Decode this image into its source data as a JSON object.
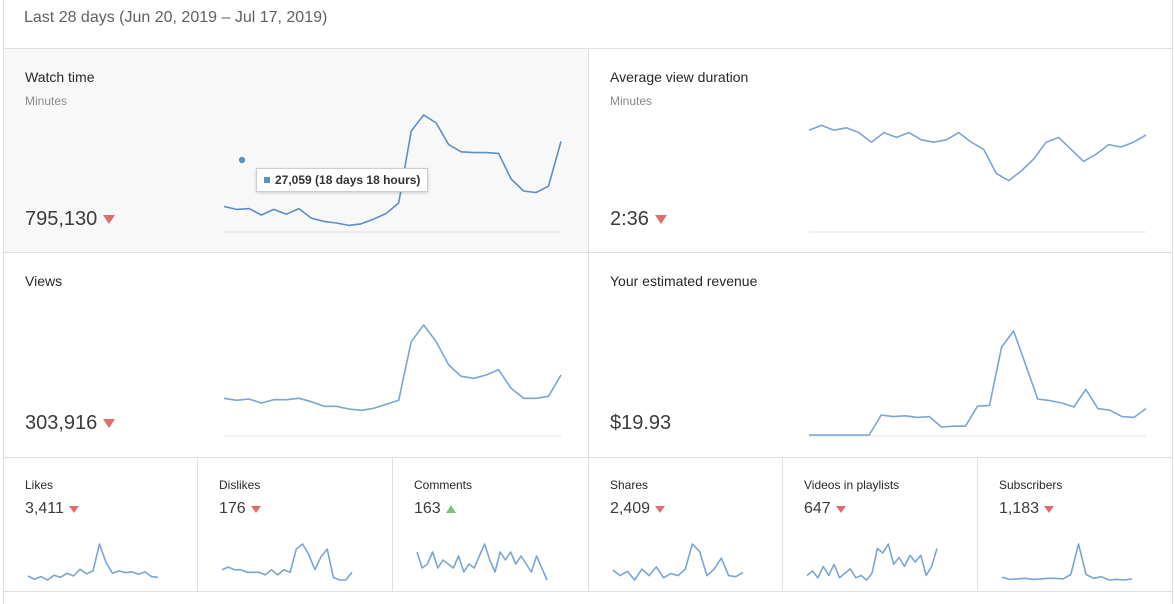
{
  "period_label": "Last 28 days (Jun 20, 2019 – Jul 17, 2019)",
  "colors": {
    "line": "#7aa5d6",
    "line_selected": "#5c8ec8",
    "down": "#e06c6c",
    "up": "#7ac37a"
  },
  "tooltip": {
    "text": "27,059 (18 days 18 hours)"
  },
  "big_cards": [
    {
      "title": "Watch time",
      "unit": "Minutes",
      "value": "795,130",
      "trend": "down",
      "series": [
        27059,
        26700,
        26800,
        26000,
        26700,
        26100,
        26800,
        25600,
        25200,
        25000,
        24700,
        24900,
        25500,
        26200,
        27500,
        36500,
        38500,
        37500,
        34800,
        33900,
        33800,
        33800,
        33700,
        30500,
        29000,
        28800,
        29600,
        35200
      ]
    },
    {
      "title": "Average view duration",
      "unit": "Minutes",
      "value": "2:36",
      "trend": "down",
      "series": [
        2.62,
        2.64,
        2.62,
        2.63,
        2.61,
        2.57,
        2.61,
        2.59,
        2.61,
        2.58,
        2.57,
        2.58,
        2.61,
        2.57,
        2.54,
        2.44,
        2.41,
        2.45,
        2.5,
        2.57,
        2.59,
        2.54,
        2.49,
        2.52,
        2.56,
        2.55,
        2.57,
        2.6
      ]
    },
    {
      "title": "Views",
      "unit": "",
      "value": "303,916",
      "trend": "down",
      "series": [
        10500,
        10200,
        10400,
        9800,
        10300,
        10300,
        10500,
        10000,
        9300,
        9300,
        8900,
        8700,
        9000,
        9600,
        10200,
        19000,
        21500,
        19000,
        15500,
        13800,
        13500,
        14000,
        14800,
        12000,
        10500,
        10500,
        10800,
        14000
      ]
    },
    {
      "title": "Your estimated revenue",
      "unit": "",
      "value": "$19.93",
      "trend": "down",
      "series": [
        0.0,
        0.0,
        0.0,
        0.0,
        0.0,
        0.0,
        0.25,
        0.23,
        0.24,
        0.22,
        0.23,
        0.1,
        0.11,
        0.11,
        0.36,
        0.37,
        1.1,
        1.3,
        0.88,
        0.45,
        0.43,
        0.4,
        0.35,
        0.57,
        0.33,
        0.31,
        0.23,
        0.22,
        0.33
      ]
    }
  ],
  "small_cards": [
    {
      "title": "Likes",
      "value": "3,411",
      "trend": "down",
      "series": [
        110,
        100,
        108,
        98,
        112,
        106,
        118,
        110,
        130,
        116,
        125,
        205,
        150,
        118,
        125,
        120,
        122,
        115,
        122,
        108,
        106
      ]
    },
    {
      "title": "Dislikes",
      "value": "176",
      "trend": "down",
      "series": [
        6,
        7,
        6,
        6,
        5,
        5,
        5,
        4,
        6,
        4,
        6,
        5,
        14,
        16,
        12,
        6,
        11,
        14,
        3,
        2,
        2,
        5
      ]
    },
    {
      "title": "Comments",
      "value": "163",
      "trend": "up",
      "series": [
        7,
        3,
        4,
        7,
        3,
        5,
        4,
        3,
        6,
        2,
        4,
        3,
        6,
        9,
        5,
        2,
        7,
        5,
        7,
        4,
        6,
        4,
        2,
        6,
        3,
        0
      ]
    },
    {
      "title": "Shares",
      "value": "2,409",
      "trend": "down",
      "series": [
        80,
        70,
        78,
        62,
        82,
        70,
        86,
        66,
        74,
        70,
        82,
        128,
        114,
        70,
        82,
        102,
        70,
        68,
        76
      ]
    },
    {
      "title": "Videos in playlists",
      "value": "647",
      "trend": "down",
      "series": [
        20,
        24,
        18,
        28,
        20,
        30,
        18,
        22,
        26,
        18,
        20,
        16,
        22,
        44,
        40,
        48,
        30,
        36,
        28,
        38,
        32,
        38,
        20,
        28,
        44
      ]
    },
    {
      "title": "Subscribers",
      "value": "1,183",
      "trend": "down",
      "series": [
        40,
        36,
        37,
        38,
        36,
        37,
        38,
        38,
        37,
        45,
        100,
        45,
        38,
        41,
        35,
        36,
        35,
        37
      ]
    }
  ]
}
